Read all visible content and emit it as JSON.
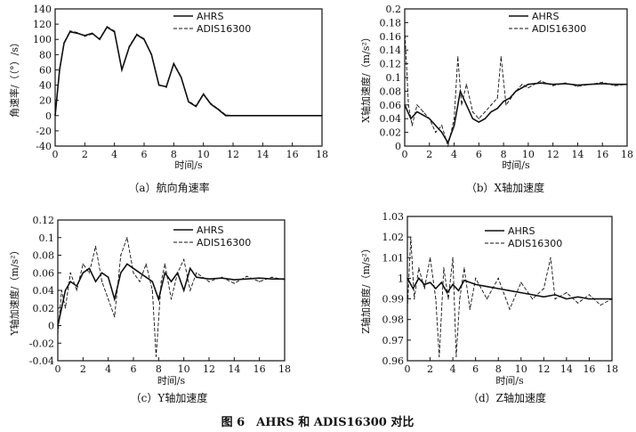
{
  "figure_caption": "图 6　AHRS 和 ADIS16300 对比",
  "chart_data": [
    {
      "id": "a",
      "type": "line",
      "caption": "（a）航向角速率",
      "xlabel": "时间/s",
      "ylabel": "角速率/（（°）/s）",
      "xlim": [
        0,
        18
      ],
      "ylim": [
        -40,
        140
      ],
      "xticks": [
        0,
        2,
        4,
        6,
        8,
        10,
        12,
        14,
        16,
        18
      ],
      "yticks": [
        -40,
        -20,
        0,
        20,
        40,
        60,
        80,
        100,
        120,
        140
      ],
      "legend": [
        "AHRS",
        "ADIS16300"
      ],
      "series": [
        {
          "name": "AHRS",
          "style": "solid",
          "x": [
            0,
            0.3,
            0.6,
            1,
            1.5,
            2,
            2.5,
            3,
            3.5,
            4,
            4.5,
            5,
            5.5,
            6,
            6.5,
            7,
            7.5,
            8,
            8.5,
            9,
            9.5,
            10,
            10.5,
            11,
            11.5,
            12,
            13,
            14,
            16,
            18
          ],
          "y": [
            0,
            60,
            95,
            110,
            108,
            105,
            108,
            100,
            116,
            110,
            60,
            90,
            106,
            100,
            80,
            40,
            38,
            68,
            50,
            18,
            12,
            28,
            15,
            8,
            0,
            0,
            0,
            0,
            0,
            0
          ]
        },
        {
          "name": "ADIS16300",
          "style": "dashed",
          "x": [
            0,
            0.3,
            0.6,
            1,
            1.5,
            2,
            2.5,
            3,
            3.5,
            4,
            4.5,
            5,
            5.5,
            6,
            6.5,
            7,
            7.5,
            8,
            8.5,
            9,
            9.5,
            10,
            10.5,
            11,
            11.5,
            12,
            13,
            14,
            16,
            18
          ],
          "y": [
            0,
            62,
            96,
            111,
            109,
            104,
            107,
            101,
            117,
            111,
            61,
            91,
            107,
            101,
            81,
            41,
            37,
            69,
            51,
            19,
            13,
            29,
            16,
            9,
            1,
            0,
            0,
            0,
            0,
            0
          ]
        }
      ]
    },
    {
      "id": "b",
      "type": "line",
      "caption": "（b）X轴加速度",
      "xlabel": "时间/s",
      "ylabel": "X轴加速度/（m/s²）",
      "xlim": [
        0,
        18
      ],
      "ylim": [
        0,
        0.2
      ],
      "xticks": [
        0,
        2,
        4,
        6,
        8,
        10,
        12,
        14,
        16,
        18
      ],
      "yticks": [
        0,
        0.02,
        0.04,
        0.06,
        0.08,
        0.1,
        0.12,
        0.14,
        0.16,
        0.18,
        0.2
      ],
      "legend": [
        "AHRS",
        "ADIS16300"
      ],
      "series": [
        {
          "name": "AHRS",
          "style": "solid",
          "x": [
            0,
            0.5,
            1,
            1.5,
            2,
            2.5,
            3,
            3.5,
            4,
            4.5,
            5,
            5.5,
            6,
            6.5,
            7,
            7.5,
            8,
            8.5,
            9,
            9.5,
            10,
            11,
            12,
            13,
            14,
            15,
            16,
            17,
            18
          ],
          "y": [
            0.06,
            0.04,
            0.05,
            0.045,
            0.04,
            0.03,
            0.02,
            0.005,
            0.03,
            0.08,
            0.06,
            0.04,
            0.035,
            0.04,
            0.05,
            0.055,
            0.065,
            0.07,
            0.08,
            0.085,
            0.09,
            0.092,
            0.09,
            0.091,
            0.089,
            0.09,
            0.091,
            0.09,
            0.09
          ]
        },
        {
          "name": "ADIS16300",
          "style": "dashed",
          "x": [
            0,
            0.3,
            0.6,
            1,
            1.5,
            2,
            2.5,
            3,
            3.5,
            4,
            4.3,
            4.6,
            5,
            5.5,
            6,
            6.5,
            7,
            7.5,
            7.8,
            8.2,
            9,
            9.5,
            10,
            11,
            12,
            13,
            14,
            15,
            16,
            17,
            18
          ],
          "y": [
            0.17,
            0.06,
            0.03,
            0.06,
            0.05,
            0.04,
            0.02,
            0.03,
            0,
            0.04,
            0.13,
            0.06,
            0.09,
            0.05,
            0.04,
            0.05,
            0.06,
            0.07,
            0.13,
            0.06,
            0.08,
            0.09,
            0.085,
            0.095,
            0.088,
            0.092,
            0.087,
            0.09,
            0.093,
            0.088,
            0.09
          ]
        }
      ]
    },
    {
      "id": "c",
      "type": "line",
      "caption": "（c）Y轴加速度",
      "xlabel": "时间/s",
      "ylabel": "Y轴加速度/（m/s²）",
      "xlim": [
        0,
        18
      ],
      "ylim": [
        -0.04,
        0.12
      ],
      "xticks": [
        0,
        2,
        4,
        6,
        8,
        10,
        12,
        14,
        16,
        18
      ],
      "yticks": [
        -0.04,
        -0.02,
        0,
        0.02,
        0.04,
        0.06,
        0.08,
        0.1,
        0.12
      ],
      "legend": [
        "AHRS",
        "ADIS16300"
      ],
      "series": [
        {
          "name": "AHRS",
          "style": "solid",
          "x": [
            0,
            0.3,
            0.6,
            1,
            1.5,
            2,
            2.5,
            3,
            3.5,
            4,
            4.5,
            5,
            5.5,
            6,
            6.5,
            7,
            7.5,
            8,
            8.5,
            9,
            9.5,
            10,
            10.5,
            11,
            12,
            13,
            14,
            15,
            16,
            17,
            18
          ],
          "y": [
            0,
            0.02,
            0.04,
            0.05,
            0.045,
            0.06,
            0.065,
            0.05,
            0.06,
            0.055,
            0.03,
            0.06,
            0.07,
            0.065,
            0.06,
            0.055,
            0.05,
            0.03,
            0.06,
            0.05,
            0.06,
            0.04,
            0.065,
            0.055,
            0.053,
            0.054,
            0.052,
            0.053,
            0.054,
            0.053,
            0.053
          ]
        },
        {
          "name": "ADIS16300",
          "style": "dashed",
          "x": [
            0,
            0.3,
            0.6,
            1,
            1.5,
            2,
            2.5,
            3,
            3.5,
            4,
            4.5,
            5,
            5.5,
            6,
            6.5,
            7,
            7.5,
            7.8,
            8.2,
            8.5,
            9,
            9.5,
            10,
            10.5,
            11,
            12,
            13,
            14,
            15,
            16,
            17,
            18
          ],
          "y": [
            -0.01,
            0.04,
            0.02,
            0.06,
            0.04,
            0.07,
            0.06,
            0.09,
            0.05,
            0.03,
            0.01,
            0.08,
            0.1,
            0.06,
            0.05,
            0.07,
            0.04,
            -0.035,
            0.05,
            0.07,
            0.03,
            0.06,
            0.075,
            0.04,
            0.06,
            0.05,
            0.055,
            0.048,
            0.056,
            0.05,
            0.055,
            0.052
          ]
        }
      ]
    },
    {
      "id": "d",
      "type": "line",
      "caption": "（d）Z轴加速度",
      "xlabel": "时间/s",
      "ylabel": "Z轴加速度/（m/s²）",
      "xlim": [
        0,
        18
      ],
      "ylim": [
        0.96,
        1.03
      ],
      "xticks": [
        0,
        2,
        4,
        6,
        8,
        10,
        12,
        14,
        16,
        18
      ],
      "yticks": [
        0.96,
        0.97,
        0.98,
        0.99,
        1,
        1.01,
        1.02,
        1.03
      ],
      "legend": [
        "AHRS",
        "ADIS16300"
      ],
      "series": [
        {
          "name": "AHRS",
          "style": "solid",
          "x": [
            0,
            0.5,
            1,
            1.5,
            2,
            2.5,
            3,
            3.5,
            4,
            4.5,
            5,
            6,
            7,
            8,
            9,
            10,
            11,
            12,
            13,
            14,
            15,
            16,
            17,
            18
          ],
          "y": [
            1.0,
            0.995,
            1.0,
            0.997,
            0.998,
            0.995,
            0.998,
            0.993,
            0.997,
            0.994,
            0.999,
            0.997,
            0.996,
            0.995,
            0.994,
            0.993,
            0.992,
            0.991,
            0.992,
            0.99,
            0.991,
            0.99,
            0.99,
            0.99
          ]
        },
        {
          "name": "ADIS16300",
          "style": "dashed",
          "x": [
            0,
            0.3,
            0.6,
            1,
            1.5,
            2,
            2.5,
            2.8,
            3.2,
            3.6,
            4,
            4.3,
            4.6,
            5,
            5.5,
            6,
            7,
            8,
            9,
            10,
            11,
            12,
            12.6,
            13,
            14,
            15,
            16,
            17,
            18
          ],
          "y": [
            0.985,
            1.02,
            0.99,
            1.005,
            0.995,
            1.01,
            0.99,
            0.962,
            1.005,
            0.99,
            1.01,
            0.962,
            0.99,
            1.005,
            0.985,
            1.0,
            0.99,
            1.0,
            0.985,
            0.998,
            0.99,
            0.995,
            1.01,
            0.99,
            0.993,
            0.988,
            0.992,
            0.987,
            0.99
          ]
        }
      ]
    }
  ]
}
